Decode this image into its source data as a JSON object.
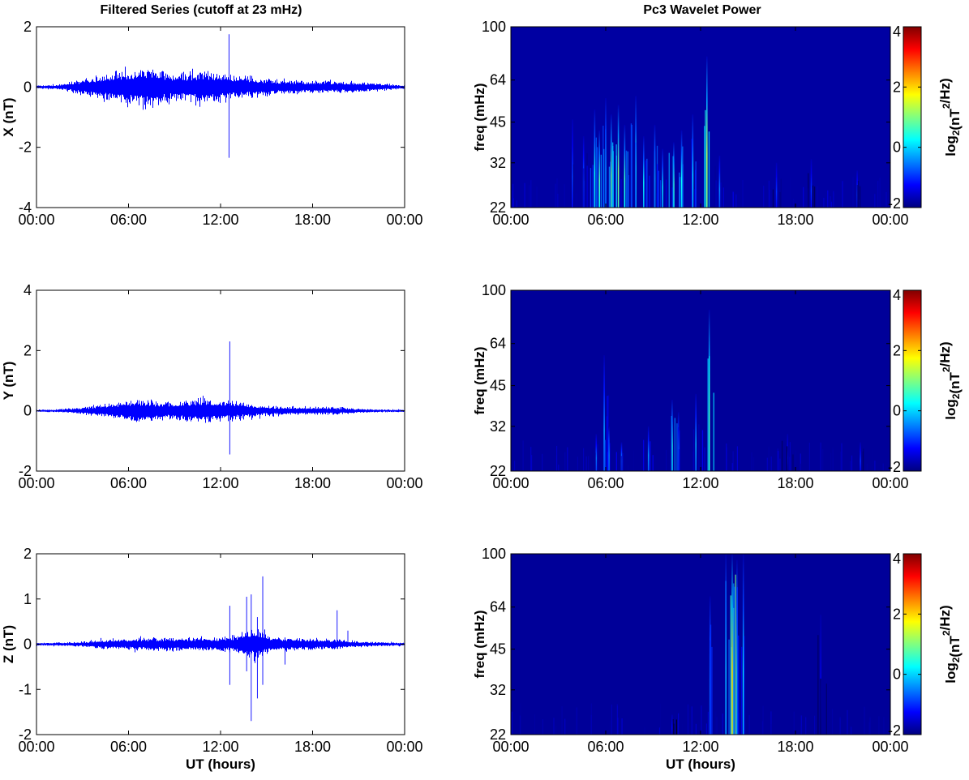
{
  "titles": {
    "left": "Filtered Series (cutoff at 23 mHz)",
    "right": "Pc3 Wavelet Power"
  },
  "chart_data": [
    {
      "type": "line",
      "component": "X",
      "ylabel": "X (nT)",
      "xlabel": "",
      "x_ticks": [
        "00:00",
        "06:00",
        "12:00",
        "18:00",
        "00:00"
      ],
      "xlim_hours": [
        0,
        24
      ],
      "ylim": [
        -4,
        2
      ],
      "y_ticks": [
        2,
        0,
        -2,
        -4
      ],
      "color": "#0000ff",
      "baseline_noise_nT": 0.04,
      "activity_envelope": [
        {
          "t_hours": 2.5,
          "amp": 0.12
        },
        {
          "t_hours": 4.0,
          "amp": 0.25
        },
        {
          "t_hours": 6.5,
          "amp": 0.45
        },
        {
          "t_hours": 7.2,
          "amp": 0.5
        },
        {
          "t_hours": 9.0,
          "amp": 0.3
        },
        {
          "t_hours": 11.0,
          "amp": 0.4
        },
        {
          "t_hours": 13.5,
          "amp": 0.25
        },
        {
          "t_hours": 16.0,
          "amp": 0.15
        },
        {
          "t_hours": 19.0,
          "amp": 0.12
        },
        {
          "t_hours": 22.0,
          "amp": 0.08
        }
      ],
      "spikes": [
        {
          "t_hours": 12.55,
          "min": -2.35,
          "max": 1.75
        }
      ]
    },
    {
      "type": "line",
      "component": "Y",
      "ylabel": "Y (nT)",
      "xlabel": "",
      "x_ticks": [
        "00:00",
        "06:00",
        "12:00",
        "18:00",
        "00:00"
      ],
      "xlim_hours": [
        0,
        24
      ],
      "ylim": [
        -2,
        4
      ],
      "y_ticks": [
        4,
        2,
        0,
        -2
      ],
      "color": "#0000ff",
      "baseline_noise_nT": 0.03,
      "activity_envelope": [
        {
          "t_hours": 3.0,
          "amp": 0.07
        },
        {
          "t_hours": 5.5,
          "amp": 0.2
        },
        {
          "t_hours": 6.5,
          "amp": 0.3
        },
        {
          "t_hours": 8.5,
          "amp": 0.2
        },
        {
          "t_hours": 10.5,
          "amp": 0.3
        },
        {
          "t_hours": 12.5,
          "amp": 0.25
        },
        {
          "t_hours": 15.0,
          "amp": 0.1
        },
        {
          "t_hours": 20.0,
          "amp": 0.06
        }
      ],
      "spikes": [
        {
          "t_hours": 12.6,
          "min": -1.45,
          "max": 2.3
        }
      ]
    },
    {
      "type": "line",
      "component": "Z",
      "ylabel": "Z (nT)",
      "xlabel": "UT (hours)",
      "x_ticks": [
        "00:00",
        "06:00",
        "12:00",
        "18:00",
        "00:00"
      ],
      "xlim_hours": [
        0,
        24
      ],
      "ylim": [
        -2,
        2
      ],
      "y_ticks": [
        2,
        1,
        0,
        -1,
        -2
      ],
      "color": "#0000ff",
      "baseline_noise_nT": 0.03,
      "activity_envelope": [
        {
          "t_hours": 4.0,
          "amp": 0.05
        },
        {
          "t_hours": 6.5,
          "amp": 0.08
        },
        {
          "t_hours": 12.5,
          "amp": 0.1
        },
        {
          "t_hours": 14.2,
          "amp": 0.25
        },
        {
          "t_hours": 15.5,
          "amp": 0.1
        },
        {
          "t_hours": 20.0,
          "amp": 0.05
        }
      ],
      "spikes": [
        {
          "t_hours": 12.6,
          "min": -0.9,
          "max": 0.85
        },
        {
          "t_hours": 13.7,
          "min": -0.6,
          "max": 1.05
        },
        {
          "t_hours": 14.0,
          "min": -1.7,
          "max": 1.1
        },
        {
          "t_hours": 14.4,
          "min": -1.2,
          "max": 0.6
        },
        {
          "t_hours": 14.75,
          "min": -0.9,
          "max": 1.5
        },
        {
          "t_hours": 16.2,
          "min": -0.45,
          "max": 0.15
        },
        {
          "t_hours": 19.6,
          "min": -0.1,
          "max": 0.75
        },
        {
          "t_hours": 20.3,
          "min": -0.05,
          "max": 0.3
        }
      ]
    },
    {
      "type": "heatmap",
      "component": "X",
      "ylabel": "freq (mHz)",
      "xlabel": "",
      "x_ticks": [
        "00:00",
        "06:00",
        "12:00",
        "18:00",
        "00:00"
      ],
      "xlim_hours": [
        0,
        24
      ],
      "y_scale": "log",
      "ylim_mHz": [
        22,
        100
      ],
      "y_ticks": [
        100,
        64,
        45,
        32,
        22
      ],
      "colorbar_label_base": "log",
      "colorbar_label_sub": "2",
      "colorbar_label_pre": "(nT",
      "colorbar_label_sup": "2",
      "colorbar_label_post": "/Hz)",
      "colorbar_range": [
        -2,
        4
      ],
      "colorbar_ticks": [
        4,
        2,
        0,
        -2
      ],
      "background_level": -1.8,
      "bursts": [
        {
          "t_hours": 3.9,
          "top_mHz": 46,
          "peak": -0.9,
          "width_h": 0.06
        },
        {
          "t_hours": 4.6,
          "top_mHz": 40,
          "peak": -0.6,
          "width_h": 0.06
        },
        {
          "t_hours": 5.3,
          "top_mHz": 50,
          "peak": 0.2,
          "width_h": 0.06
        },
        {
          "t_hours": 5.6,
          "top_mHz": 42,
          "peak": 0.6,
          "width_h": 0.06
        },
        {
          "t_hours": 6.0,
          "top_mHz": 55,
          "peak": 0.0,
          "width_h": 0.06
        },
        {
          "t_hours": 6.35,
          "top_mHz": 48,
          "peak": 0.8,
          "width_h": 0.06
        },
        {
          "t_hours": 6.8,
          "top_mHz": 52,
          "peak": 1.0,
          "width_h": 0.06
        },
        {
          "t_hours": 7.2,
          "top_mHz": 44,
          "peak": 0.5,
          "width_h": 0.06
        },
        {
          "t_hours": 7.9,
          "top_mHz": 56,
          "peak": 0.3,
          "width_h": 0.06
        },
        {
          "t_hours": 8.4,
          "top_mHz": 40,
          "peak": 0.1,
          "width_h": 0.06
        },
        {
          "t_hours": 9.1,
          "top_mHz": 44,
          "peak": 0.2,
          "width_h": 0.06
        },
        {
          "t_hours": 9.6,
          "top_mHz": 36,
          "peak": 0.0,
          "width_h": 0.06
        },
        {
          "t_hours": 10.3,
          "top_mHz": 38,
          "peak": 0.6,
          "width_h": 0.06
        },
        {
          "t_hours": 10.8,
          "top_mHz": 42,
          "peak": 0.3,
          "width_h": 0.06
        },
        {
          "t_hours": 11.5,
          "top_mHz": 48,
          "peak": 0.2,
          "width_h": 0.06
        },
        {
          "t_hours": 12.4,
          "top_mHz": 78,
          "peak": 1.2,
          "width_h": 0.05
        },
        {
          "t_hours": 13.2,
          "top_mHz": 34,
          "peak": -0.5,
          "width_h": 0.06
        },
        {
          "t_hours": 16.8,
          "top_mHz": 32,
          "peak": -1.0,
          "width_h": 0.06
        },
        {
          "t_hours": 19.0,
          "top_mHz": 33,
          "peak": -1.0,
          "width_h": 0.06
        },
        {
          "t_hours": 21.9,
          "top_mHz": 30,
          "peak": -0.9,
          "width_h": 0.06
        }
      ]
    },
    {
      "type": "heatmap",
      "component": "Y",
      "ylabel": "freq (mHz)",
      "xlabel": "",
      "x_ticks": [
        "00:00",
        "06:00",
        "12:00",
        "18:00",
        "00:00"
      ],
      "xlim_hours": [
        0,
        24
      ],
      "y_scale": "log",
      "ylim_mHz": [
        22,
        100
      ],
      "y_ticks": [
        100,
        64,
        45,
        32,
        22
      ],
      "colorbar_label_base": "log",
      "colorbar_label_sub": "2",
      "colorbar_label_pre": "(nT",
      "colorbar_label_sup": "2",
      "colorbar_label_post": "/Hz)",
      "colorbar_range": [
        -2,
        4
      ],
      "colorbar_ticks": [
        4,
        2,
        0,
        -2
      ],
      "background_level": -1.85,
      "bursts": [
        {
          "t_hours": 5.4,
          "top_mHz": 30,
          "peak": -0.6,
          "width_h": 0.06
        },
        {
          "t_hours": 5.9,
          "top_mHz": 58,
          "peak": -0.4,
          "width_h": 0.06
        },
        {
          "t_hours": 6.2,
          "top_mHz": 32,
          "peak": 0.0,
          "width_h": 0.06
        },
        {
          "t_hours": 7.0,
          "top_mHz": 28,
          "peak": -0.3,
          "width_h": 0.06
        },
        {
          "t_hours": 8.7,
          "top_mHz": 32,
          "peak": -0.4,
          "width_h": 0.06
        },
        {
          "t_hours": 10.2,
          "top_mHz": 40,
          "peak": 0.4,
          "width_h": 0.06
        },
        {
          "t_hours": 10.6,
          "top_mHz": 36,
          "peak": -0.2,
          "width_h": 0.06
        },
        {
          "t_hours": 11.7,
          "top_mHz": 42,
          "peak": -0.3,
          "width_h": 0.06
        },
        {
          "t_hours": 12.55,
          "top_mHz": 85,
          "peak": 1.3,
          "width_h": 0.05
        },
        {
          "t_hours": 17.5,
          "top_mHz": 30,
          "peak": -1.2,
          "width_h": 0.06
        },
        {
          "t_hours": 22.1,
          "top_mHz": 28,
          "peak": -1.0,
          "width_h": 0.06
        }
      ]
    },
    {
      "type": "heatmap",
      "component": "Z",
      "ylabel": "freq (mHz)",
      "xlabel": "UT (hours)",
      "x_ticks": [
        "00:00",
        "06:00",
        "12:00",
        "18:00",
        "00:00"
      ],
      "xlim_hours": [
        0,
        24
      ],
      "y_scale": "log",
      "ylim_mHz": [
        22,
        100
      ],
      "y_ticks": [
        100,
        64,
        45,
        32,
        22
      ],
      "colorbar_label_base": "log",
      "colorbar_label_sub": "2",
      "colorbar_label_pre": "(nT",
      "colorbar_label_sup": "2",
      "colorbar_label_post": "/Hz)",
      "colorbar_range": [
        -2,
        4
      ],
      "colorbar_ticks": [
        4,
        2,
        0,
        -2
      ],
      "background_level": -1.85,
      "bursts": [
        {
          "t_hours": 10.2,
          "top_mHz": 26,
          "peak": -1.3,
          "width_h": 0.06
        },
        {
          "t_hours": 12.6,
          "top_mHz": 70,
          "peak": 0.0,
          "width_h": 0.05
        },
        {
          "t_hours": 13.6,
          "top_mHz": 100,
          "peak": 0.3,
          "width_h": 0.05
        },
        {
          "t_hours": 14.0,
          "top_mHz": 100,
          "peak": 1.8,
          "width_h": 0.05
        },
        {
          "t_hours": 14.3,
          "top_mHz": 95,
          "peak": 0.4,
          "width_h": 0.05
        },
        {
          "t_hours": 14.7,
          "top_mHz": 100,
          "peak": 0.1,
          "width_h": 0.05
        },
        {
          "t_hours": 19.6,
          "top_mHz": 60,
          "peak": -1.3,
          "width_h": 0.05
        }
      ]
    }
  ]
}
